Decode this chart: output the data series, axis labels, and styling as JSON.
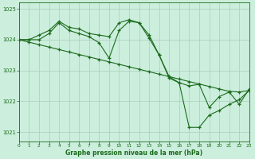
{
  "background_color": "#cceedd",
  "grid_color": "#aaccbb",
  "line_color": "#1a6b1a",
  "marker_color": "#1a6b1a",
  "series1": {
    "x": [
      0,
      1,
      2,
      3,
      4,
      5,
      6,
      7,
      8,
      9,
      10,
      11,
      12,
      13,
      14,
      15,
      16,
      17,
      18,
      19,
      20,
      21,
      22,
      23
    ],
    "y": [
      1024.0,
      1024.0,
      1024.15,
      1024.3,
      1024.6,
      1024.4,
      1024.35,
      1024.2,
      1024.15,
      1024.1,
      1024.55,
      1024.65,
      1024.55,
      1024.15,
      1023.5,
      1022.8,
      1022.6,
      1022.5,
      1022.55,
      1021.8,
      1022.15,
      1022.3,
      1021.9,
      1022.4
    ]
  },
  "series2": {
    "x": [
      0,
      1,
      2,
      3,
      4,
      5,
      6,
      7,
      8,
      9,
      10,
      11,
      12,
      13,
      14,
      15,
      16,
      17,
      18,
      19,
      20,
      21,
      22,
      23
    ],
    "y": [
      1024.0,
      1024.0,
      1024.0,
      1024.2,
      1024.55,
      1024.3,
      1024.2,
      1024.1,
      1023.9,
      1023.4,
      1024.3,
      1024.6,
      1024.55,
      1024.05,
      1023.5,
      1022.75,
      1022.6,
      1021.15,
      1021.15,
      1021.55,
      1021.7,
      1021.9,
      1022.05,
      1022.35
    ]
  },
  "series3": {
    "x": [
      0,
      1,
      2,
      3,
      4,
      5,
      6,
      7,
      8,
      9,
      10,
      11,
      12,
      13,
      14,
      15,
      16,
      17,
      18,
      19,
      20,
      21,
      22,
      23
    ],
    "y": [
      1024.0,
      1023.92,
      1023.84,
      1023.76,
      1023.68,
      1023.6,
      1023.52,
      1023.44,
      1023.36,
      1023.28,
      1023.2,
      1023.12,
      1023.04,
      1022.96,
      1022.88,
      1022.8,
      1022.72,
      1022.64,
      1022.56,
      1022.48,
      1022.4,
      1022.32,
      1022.3,
      1022.35
    ]
  },
  "xlim": [
    0,
    23
  ],
  "ylim": [
    1020.7,
    1025.2
  ],
  "yticks": [
    1021,
    1022,
    1023,
    1024,
    1025
  ],
  "xticks": [
    0,
    1,
    2,
    3,
    4,
    5,
    6,
    7,
    8,
    9,
    10,
    11,
    12,
    13,
    14,
    15,
    16,
    17,
    18,
    19,
    20,
    21,
    22,
    23
  ],
  "xlabel": "Graphe pression niveau de la mer (hPa)"
}
